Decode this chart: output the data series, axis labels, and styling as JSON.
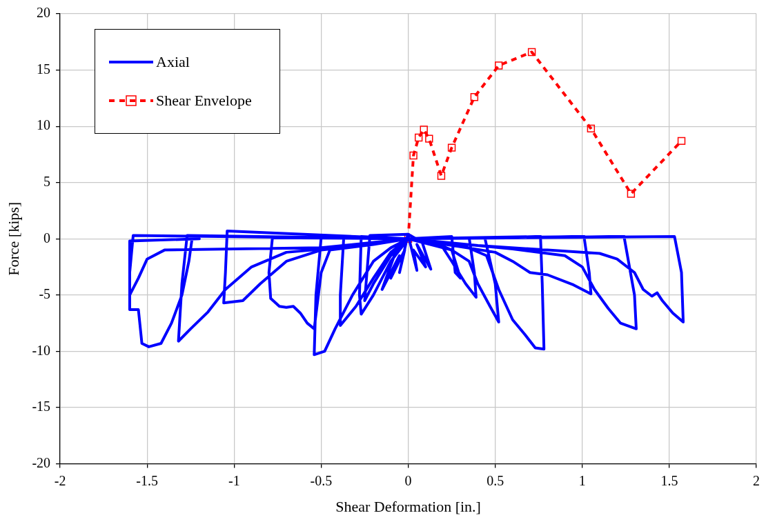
{
  "chart_data": {
    "type": "line",
    "xlabel": "Shear Deformation [in.]",
    "ylabel": "Force [kips]",
    "xlim": [
      -2,
      2
    ],
    "ylim": [
      -20,
      20
    ],
    "xticks": [
      -2,
      -1.5,
      -1,
      -0.5,
      0,
      0.5,
      1,
      1.5,
      2
    ],
    "yticks": [
      -20,
      -15,
      -10,
      -5,
      0,
      5,
      10,
      15,
      20
    ],
    "grid": true,
    "legend": "top left",
    "series": [
      {
        "name": "Axial",
        "color": "#0000ff",
        "line_style": "solid",
        "marker": "none",
        "x": [
          0,
          -0.05,
          -0.02,
          -0.1,
          -0.05,
          -0.15,
          -0.08,
          0,
          0.05,
          0.03,
          0.1,
          0.05,
          0.13,
          0.08,
          0,
          -0.22,
          -0.25,
          -0.2,
          -0.1,
          0,
          -0.27,
          -0.28,
          -0.27,
          -0.2,
          -0.1,
          0,
          -0.37,
          -0.39,
          -0.39,
          -0.3,
          -0.2,
          -0.1,
          0,
          -0.5,
          -0.53,
          -0.54,
          -0.48,
          -0.42,
          -0.32,
          -0.2,
          -0.1,
          0,
          -0.78,
          -0.8,
          -0.79,
          -0.74,
          -0.7,
          -0.66,
          -0.62,
          -0.58,
          -0.54,
          -0.5,
          -0.45,
          -0.2,
          0,
          -1.04,
          -1.05,
          -1.06,
          -0.95,
          -0.85,
          -0.7,
          -0.5,
          -0.2,
          0,
          -1.27,
          -1.3,
          -1.32,
          -1.25,
          -1.15,
          -1.05,
          -0.9,
          -0.7,
          -0.4,
          0,
          -1.58,
          -1.6,
          -1.6,
          -1.55,
          -1.53,
          -1.49,
          -1.42,
          -1.36,
          -1.3,
          -1.26,
          -1.24,
          -1.2,
          -1.6,
          -1.6,
          -1.55,
          -1.5,
          -1.4,
          -1,
          -0.5,
          0,
          0.25,
          0.27,
          0.3,
          0.25,
          0.1,
          0.35,
          0.38,
          0.39,
          0.33,
          0.25,
          0.2,
          0,
          0.44,
          0.5,
          0.52,
          0.47,
          0.4,
          0.35,
          0.25,
          0,
          0.76,
          0.77,
          0.78,
          0.73,
          0.67,
          0.6,
          0.52,
          0.45,
          0.3,
          0,
          1.01,
          1.04,
          1.05,
          0.95,
          0.8,
          0.7,
          0.6,
          0.5,
          0.3,
          0,
          1.24,
          1.3,
          1.31,
          1.22,
          1.15,
          1.07,
          1,
          0.9,
          0.6,
          0,
          1.53,
          1.57,
          1.58,
          1.52,
          1.46,
          1.43,
          1.4,
          1.35,
          1.3,
          1.2,
          1.1,
          0.8,
          0.4,
          0
        ],
        "values": [
          0.5,
          -3,
          -1,
          -3.5,
          -1.5,
          -4.5,
          -1.5,
          0.3,
          -2.8,
          -1,
          -2.5,
          -0.5,
          -2.7,
          -0.3,
          0.4,
          0.3,
          -5.5,
          -4,
          -1.5,
          0,
          0.2,
          -5,
          -6.7,
          -5,
          -2,
          0,
          0.2,
          -5,
          -7.7,
          -6,
          -3.5,
          -1.2,
          0,
          0.1,
          -5,
          -10.3,
          -10,
          -8,
          -5,
          -2,
          -0.8,
          0,
          0.1,
          -3,
          -5.3,
          -6,
          -6.1,
          -6,
          -6.6,
          -7.5,
          -8,
          -3,
          -1,
          -0.5,
          0,
          0.7,
          -3,
          -5.7,
          -5.5,
          -4,
          -2,
          -1,
          -0.5,
          0,
          0.3,
          -4,
          -9.1,
          -8,
          -6.5,
          -4.5,
          -2.5,
          -1.2,
          -0.8,
          0,
          0.3,
          -3,
          -6.3,
          -6.3,
          -9.3,
          -9.6,
          -9.3,
          -7.5,
          -5,
          -2,
          0.2,
          0,
          -0.2,
          -5,
          -3.5,
          -1.8,
          -1,
          -0.9,
          -0.8,
          0,
          0.2,
          -3,
          -3.5,
          -1,
          0,
          0.1,
          -3,
          -5.2,
          -4,
          -2,
          -0.8,
          0,
          0.1,
          -4,
          -7.4,
          -6,
          -4,
          -2,
          -1,
          0,
          0.2,
          -4,
          -9.8,
          -9.7,
          -8.5,
          -7.2,
          -4.5,
          -1.5,
          -0.5,
          0,
          0.2,
          -3,
          -4.9,
          -4.1,
          -3.2,
          -3,
          -2,
          -1.2,
          -0.7,
          0,
          0.2,
          -5,
          -8,
          -7.5,
          -6.2,
          -4.5,
          -2.5,
          -1.5,
          -0.9,
          0,
          0.2,
          -3,
          -7.4,
          -6.6,
          -5.5,
          -4.8,
          -5.1,
          -4.5,
          -3,
          -1.8,
          -1.3,
          -1,
          -0.6,
          0
        ]
      },
      {
        "name": "Shear Envelope",
        "color": "#ff0000",
        "line_style": "dashed",
        "marker": "square",
        "x": [
          0,
          0.03,
          0.06,
          0.09,
          0.12,
          0.19,
          0.25,
          0.38,
          0.52,
          0.71,
          1.05,
          1.28,
          1.57
        ],
        "values": [
          0,
          7.4,
          9,
          9.7,
          8.9,
          5.6,
          8.1,
          12.6,
          15.4,
          16.6,
          9.8,
          4,
          8.7
        ]
      }
    ]
  }
}
